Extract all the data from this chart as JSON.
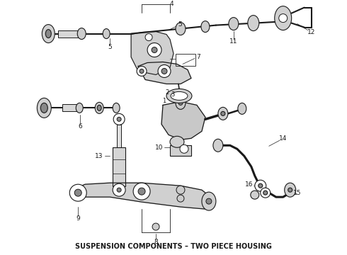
{
  "title": "SUSPENSION COMPONENTS – TWO PIECE HOUSING",
  "title_fontsize": 7.0,
  "bg_color": "#ffffff",
  "line_color": "#1a1a1a",
  "fig_width": 4.9,
  "fig_height": 3.6,
  "dpi": 100
}
